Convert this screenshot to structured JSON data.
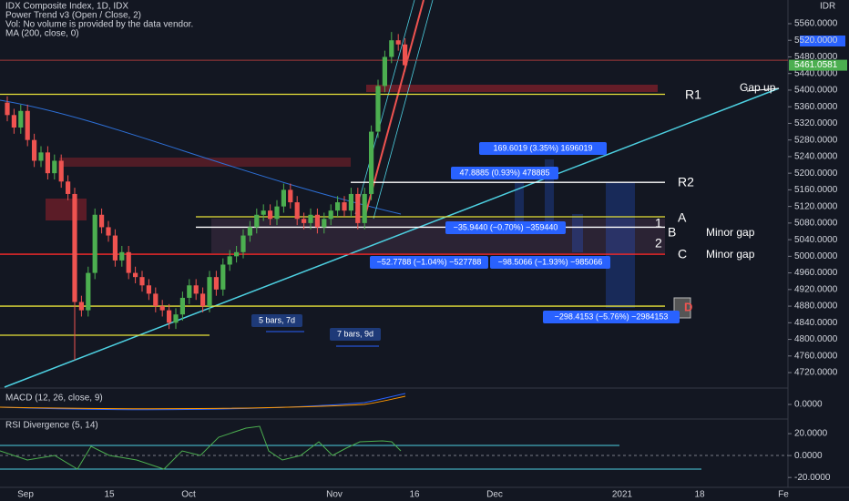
{
  "legend": [
    "IDX Composite Index, 1D, IDX",
    "Power Trend v3 (Open / Close, 2)",
    "Vol: No volume is provided by the data vendor.",
    "MA (200, close, 0)"
  ],
  "currency": "IDR",
  "last_price": "5461.0581",
  "chart_data": {
    "type": "candlestick",
    "open": [
      5370,
      5340,
      5310,
      5350,
      5280,
      5230,
      5250,
      5200,
      5230,
      5180,
      5150,
      4890,
      4870,
      4960,
      5100,
      5070,
      5050,
      4990,
      5010,
      4960,
      4950,
      4930,
      4910,
      4880,
      4870,
      4840,
      4860,
      4900,
      4930,
      4910,
      4880,
      4950,
      4920,
      4980,
      5000,
      5010,
      5050,
      5070,
      5100,
      5110,
      5090,
      5120,
      5160,
      5130,
      5090,
      5080,
      5100,
      5070,
      5090,
      5110,
      5130,
      5110,
      5150,
      5080,
      5150,
      5300,
      5410,
      5480,
      5520,
      5510
    ],
    "high": [
      5385,
      5355,
      5365,
      5365,
      5295,
      5265,
      5265,
      5245,
      5245,
      5195,
      5165,
      4905,
      4975,
      5115,
      5115,
      5085,
      5065,
      5025,
      5025,
      4975,
      4965,
      4945,
      4925,
      4895,
      4885,
      4875,
      4915,
      4945,
      4945,
      4925,
      4965,
      4965,
      4995,
      5015,
      5025,
      5065,
      5085,
      5115,
      5125,
      5125,
      5135,
      5175,
      5175,
      5145,
      5105,
      5115,
      5115,
      5105,
      5125,
      5145,
      5145,
      5165,
      5165,
      5165,
      5315,
      5425,
      5495,
      5540,
      5535,
      5525
    ],
    "low": [
      5325,
      5295,
      5295,
      5265,
      5215,
      5215,
      5185,
      5185,
      5165,
      5135,
      4750,
      4855,
      4855,
      4945,
      5055,
      5035,
      4975,
      4975,
      4945,
      4935,
      4915,
      4895,
      4865,
      4855,
      4825,
      4825,
      4845,
      4885,
      4895,
      4865,
      4865,
      4905,
      4905,
      4965,
      4985,
      4995,
      5035,
      5055,
      5085,
      5075,
      5075,
      5105,
      5115,
      5075,
      5065,
      5065,
      5055,
      5055,
      5075,
      5095,
      5095,
      5095,
      5065,
      5065,
      5135,
      5285,
      5395,
      5465,
      5495,
      5445
    ],
    "close": [
      5340,
      5310,
      5350,
      5280,
      5230,
      5250,
      5200,
      5230,
      5180,
      5150,
      4890,
      4870,
      4960,
      5100,
      5070,
      5050,
      4990,
      5010,
      4960,
      4950,
      4930,
      4910,
      4880,
      4870,
      4840,
      4860,
      4900,
      4930,
      4910,
      4880,
      4950,
      4920,
      4980,
      5000,
      5010,
      5050,
      5070,
      5100,
      5110,
      5090,
      5120,
      5160,
      5130,
      5090,
      5080,
      5100,
      5070,
      5090,
      5110,
      5130,
      5110,
      5150,
      5080,
      5150,
      5300,
      5410,
      5480,
      5520,
      5510,
      5460
    ],
    "up_color": "#4caf50",
    "down_color": "#ef5350",
    "ylim": [
      4685,
      5617
    ],
    "yticks": [
      {
        "value": 4720,
        "label": "4720.0000"
      },
      {
        "value": 4760,
        "label": "4760.0000"
      },
      {
        "value": 4800,
        "label": "4800.0000"
      },
      {
        "value": 4840,
        "label": "4840.0000"
      },
      {
        "value": 4880,
        "label": "4880.0000"
      },
      {
        "value": 4920,
        "label": "4920.0000"
      },
      {
        "value": 4960,
        "label": "4960.0000"
      },
      {
        "value": 5000,
        "label": "5000.0000"
      },
      {
        "value": 5040,
        "label": "5040.0000"
      },
      {
        "value": 5080,
        "label": "5080.0000"
      },
      {
        "value": 5120,
        "label": "5120.0000"
      },
      {
        "value": 5160,
        "label": "5160.0000"
      },
      {
        "value": 5200,
        "label": "5200.0000"
      },
      {
        "value": 5240,
        "label": "5240.0000"
      },
      {
        "value": 5280,
        "label": "5280.0000"
      },
      {
        "value": 5320,
        "label": "5320.0000"
      },
      {
        "value": 5360,
        "label": "5360.0000"
      },
      {
        "value": 5400,
        "label": "5400.0000"
      },
      {
        "value": 5440,
        "label": "5440.0000"
      },
      {
        "value": 5480,
        "label": "5480.0000"
      },
      {
        "value": 5520,
        "label": "5520.0000"
      },
      {
        "value": 5560,
        "label": "5560.0000"
      }
    ],
    "x_labels": [
      "Sep",
      "15",
      "Oct",
      "Nov",
      "16",
      "Dec",
      "2021",
      "18",
      "Fe"
    ],
    "levels": [
      {
        "value": 5390,
        "color": "#e8e23a"
      },
      {
        "value": 5178,
        "color": "#ffffff"
      },
      {
        "value": 5095,
        "color": "#e8e23a"
      },
      {
        "value": 5070,
        "color": "#ffffff"
      },
      {
        "value": 5005,
        "color": "#ff2a2a"
      },
      {
        "value": 4880,
        "color": "#e8e23a"
      },
      {
        "value": 4810,
        "color": "#e8e23a"
      },
      {
        "value": 5472,
        "color": "#a33a3a"
      }
    ],
    "annotations": [
      "Gap up",
      "R1",
      "R2",
      "A",
      "1",
      "B",
      "Minor gap",
      "2",
      "C",
      "Minor gap"
    ],
    "measurements": [
      "169.6019 (3.35%) 1696019",
      "47.8885 (0.93%) 478885",
      "−35.9440 (−0.70%) −359440",
      "−52.7788 (−1.04%) −527788",
      "−98.5066 (−1.93%) −985066",
      "−298.4153 (−5.76%) −2984153",
      "5 bars, 7d",
      "7 bars, 9d"
    ],
    "macd": {
      "title": "MACD (12, 26, close, 9)",
      "ylim": [
        -30,
        30
      ],
      "yticks": [
        {
          "value": 0,
          "label": "0.0000"
        }
      ]
    },
    "rsi": {
      "title": "RSI Divergence (5, 14)",
      "ylim": [
        -29,
        31.7
      ],
      "yticks": [
        {
          "value": 20,
          "label": "20.0000"
        },
        {
          "value": 0,
          "label": "0.0000"
        },
        {
          "value": -20,
          "label": "-20.0000"
        }
      ]
    },
    "alert": "D"
  }
}
